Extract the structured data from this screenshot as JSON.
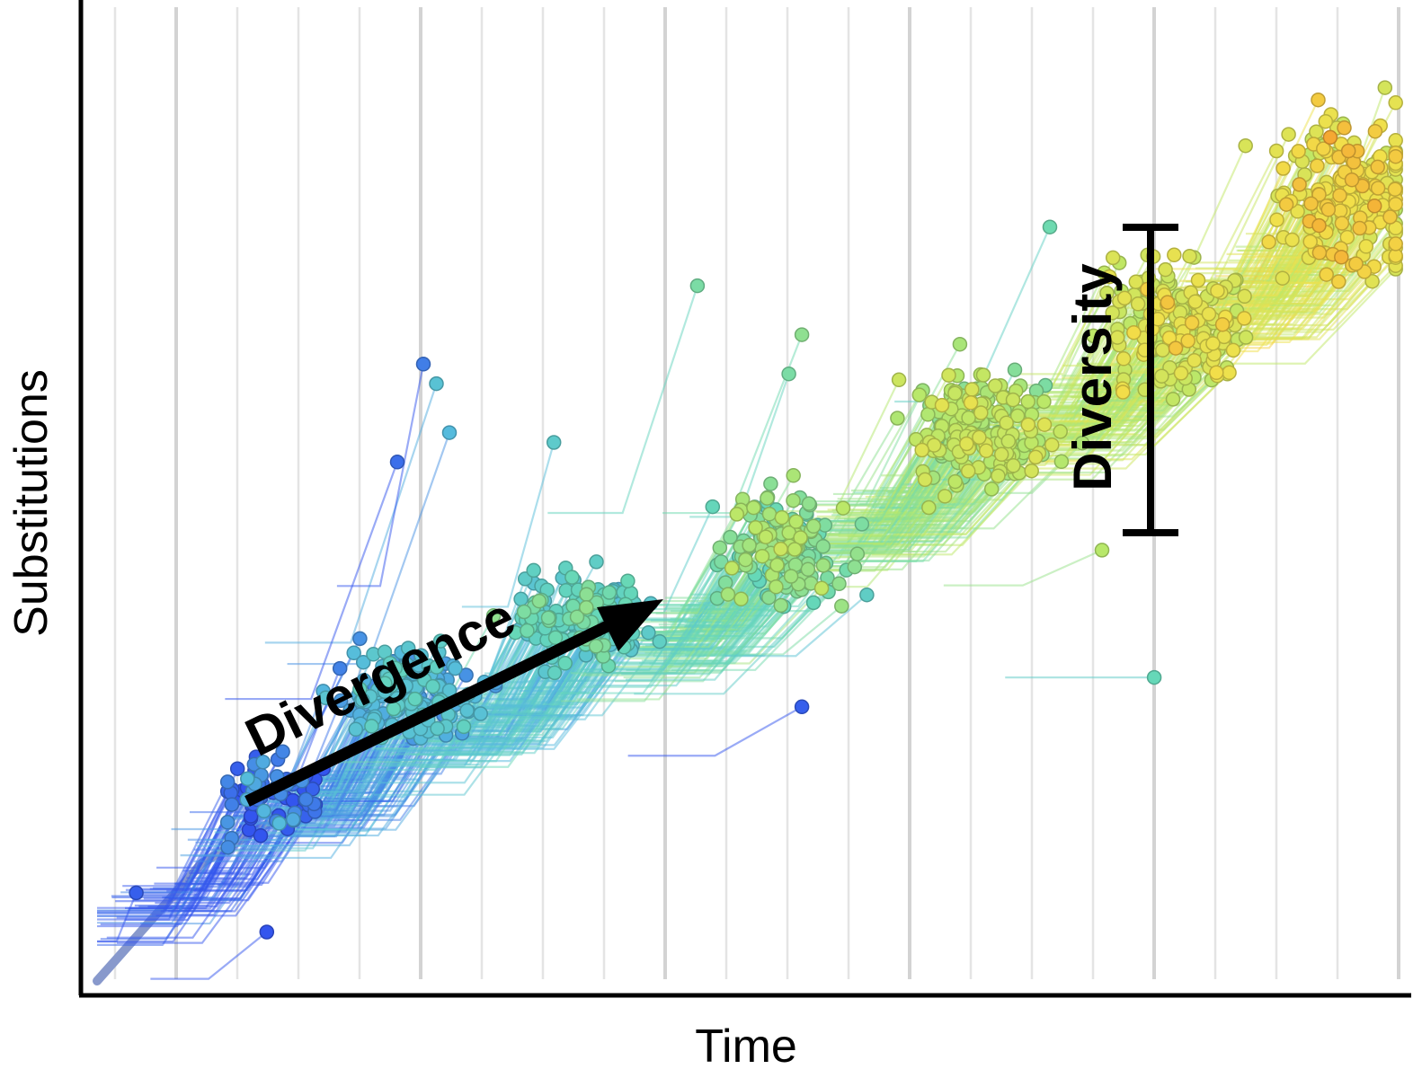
{
  "chart_data": {
    "type": "scatter",
    "subtype": "phylogenetic-tree-over-time",
    "title": "",
    "xlabel": "Time",
    "ylabel": "Substitutions",
    "x_tick_labels": [],
    "y_tick_labels": [],
    "grid": "vertical",
    "legend": "none",
    "color_scale": [
      "#3355ee",
      "#55bbdd",
      "#66d8b8",
      "#b8e86a",
      "#f2e04a",
      "#f5a030"
    ],
    "trend": {
      "start": {
        "time": 0.0,
        "substitutions": 0.0
      },
      "end": {
        "time": 1.0,
        "substitutions": 0.75
      }
    },
    "clusters": [
      {
        "time": 0.13,
        "substitutions": 0.19,
        "spread": 0.07,
        "count": 70,
        "color_index": 0.05
      },
      {
        "time": 0.24,
        "substitutions": 0.29,
        "spread": 0.08,
        "count": 150,
        "color_index": 0.22
      },
      {
        "time": 0.37,
        "substitutions": 0.37,
        "spread": 0.08,
        "count": 170,
        "color_index": 0.36
      },
      {
        "time": 0.53,
        "substitutions": 0.44,
        "spread": 0.09,
        "count": 180,
        "color_index": 0.5
      },
      {
        "time": 0.68,
        "substitutions": 0.56,
        "spread": 0.11,
        "count": 190,
        "color_index": 0.6
      },
      {
        "time": 0.83,
        "substitutions": 0.67,
        "spread": 0.12,
        "count": 200,
        "color_index": 0.7
      },
      {
        "time": 0.96,
        "substitutions": 0.8,
        "spread": 0.13,
        "count": 210,
        "color_index": 0.78
      }
    ],
    "outliers": [
      {
        "time": 0.03,
        "substitutions": 0.09,
        "color_index": 0.02
      },
      {
        "time": 0.13,
        "substitutions": 0.05,
        "color_index": 0.0
      },
      {
        "time": 0.26,
        "substitutions": 0.61,
        "color_index": 0.25
      },
      {
        "time": 0.27,
        "substitutions": 0.56,
        "color_index": 0.2
      },
      {
        "time": 0.35,
        "substitutions": 0.55,
        "color_index": 0.3
      },
      {
        "time": 0.46,
        "substitutions": 0.71,
        "color_index": 0.45
      },
      {
        "time": 0.54,
        "substitutions": 0.66,
        "color_index": 0.5
      },
      {
        "time": 0.53,
        "substitutions": 0.62,
        "color_index": 0.45
      },
      {
        "time": 0.54,
        "substitutions": 0.28,
        "color_index": 0.02
      },
      {
        "time": 0.81,
        "substitutions": 0.31,
        "color_index": 0.4
      },
      {
        "time": 0.73,
        "substitutions": 0.77,
        "color_index": 0.42
      },
      {
        "time": 0.77,
        "substitutions": 0.44,
        "color_index": 0.6
      },
      {
        "time": 0.25,
        "substitutions": 0.63,
        "color_index": 0.08
      },
      {
        "time": 0.23,
        "substitutions": 0.53,
        "color_index": 0.05
      }
    ],
    "annotations": {
      "divergence": {
        "text": "Divergence"
      },
      "diversity": {
        "text": "Diversity"
      }
    }
  }
}
